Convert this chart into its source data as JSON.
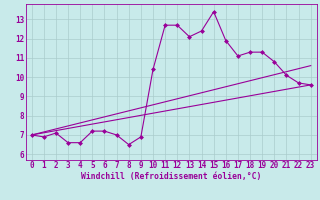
{
  "xlabel": "Windchill (Refroidissement éolien,°C)",
  "background_color": "#c8eaea",
  "grid_color": "#aacccc",
  "line_color": "#990099",
  "xlim": [
    -0.5,
    23.5
  ],
  "ylim": [
    5.7,
    13.8
  ],
  "yticks": [
    6,
    7,
    8,
    9,
    10,
    11,
    12,
    13
  ],
  "xticks": [
    0,
    1,
    2,
    3,
    4,
    5,
    6,
    7,
    8,
    9,
    10,
    11,
    12,
    13,
    14,
    15,
    16,
    17,
    18,
    19,
    20,
    21,
    22,
    23
  ],
  "main_x": [
    0,
    1,
    2,
    3,
    4,
    5,
    6,
    7,
    8,
    9,
    10,
    11,
    12,
    13,
    14,
    15,
    16,
    17,
    18,
    19,
    20,
    21,
    22,
    23
  ],
  "main_y": [
    7.0,
    6.9,
    7.1,
    6.6,
    6.6,
    7.2,
    7.2,
    7.0,
    6.5,
    6.9,
    10.4,
    12.7,
    12.7,
    12.1,
    12.4,
    13.4,
    11.9,
    11.1,
    11.3,
    11.3,
    10.8,
    10.1,
    9.7,
    9.6
  ],
  "line1_x": [
    0,
    23
  ],
  "line1_y": [
    7.0,
    10.6
  ],
  "line2_x": [
    0,
    23
  ],
  "line2_y": [
    7.0,
    9.6
  ],
  "marker_size": 2.5,
  "tick_fontsize": 5.5,
  "xlabel_fontsize": 5.8
}
